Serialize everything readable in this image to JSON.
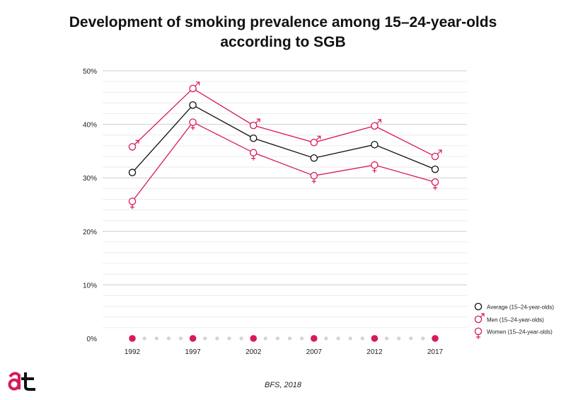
{
  "title_line1": "Development of smoking prevalence among 15–24-year-olds",
  "title_line2": "according to SGB",
  "source": "BFS, 2018",
  "logo_text": "at",
  "colors": {
    "average": "#111111",
    "men": "#d81b55",
    "women": "#d81b55",
    "grid": "#d6d6d6",
    "timeline_dot": "#d4d4d4"
  },
  "chart_data": {
    "type": "line",
    "x": [
      "1992",
      "1997",
      "2002",
      "2007",
      "2012",
      "2017"
    ],
    "ylim": [
      0,
      50
    ],
    "yticks": [
      "0%",
      "10%",
      "20%",
      "30%",
      "40%",
      "50%"
    ],
    "series": [
      {
        "name": "Average (15–24-year-olds)",
        "key": "average",
        "symbol": "",
        "values": [
          31.0,
          43.6,
          37.4,
          33.7,
          36.2,
          31.6
        ]
      },
      {
        "name": "Men (15–24-year-olds)",
        "key": "men",
        "symbol": "♂",
        "values": [
          35.8,
          46.7,
          39.8,
          36.6,
          39.7,
          34.0
        ]
      },
      {
        "name": "Women (15–24-year-olds)",
        "key": "women",
        "symbol": "♀",
        "values": [
          25.6,
          40.4,
          34.7,
          30.4,
          32.4,
          29.2
        ]
      }
    ],
    "legend_position": "right"
  }
}
